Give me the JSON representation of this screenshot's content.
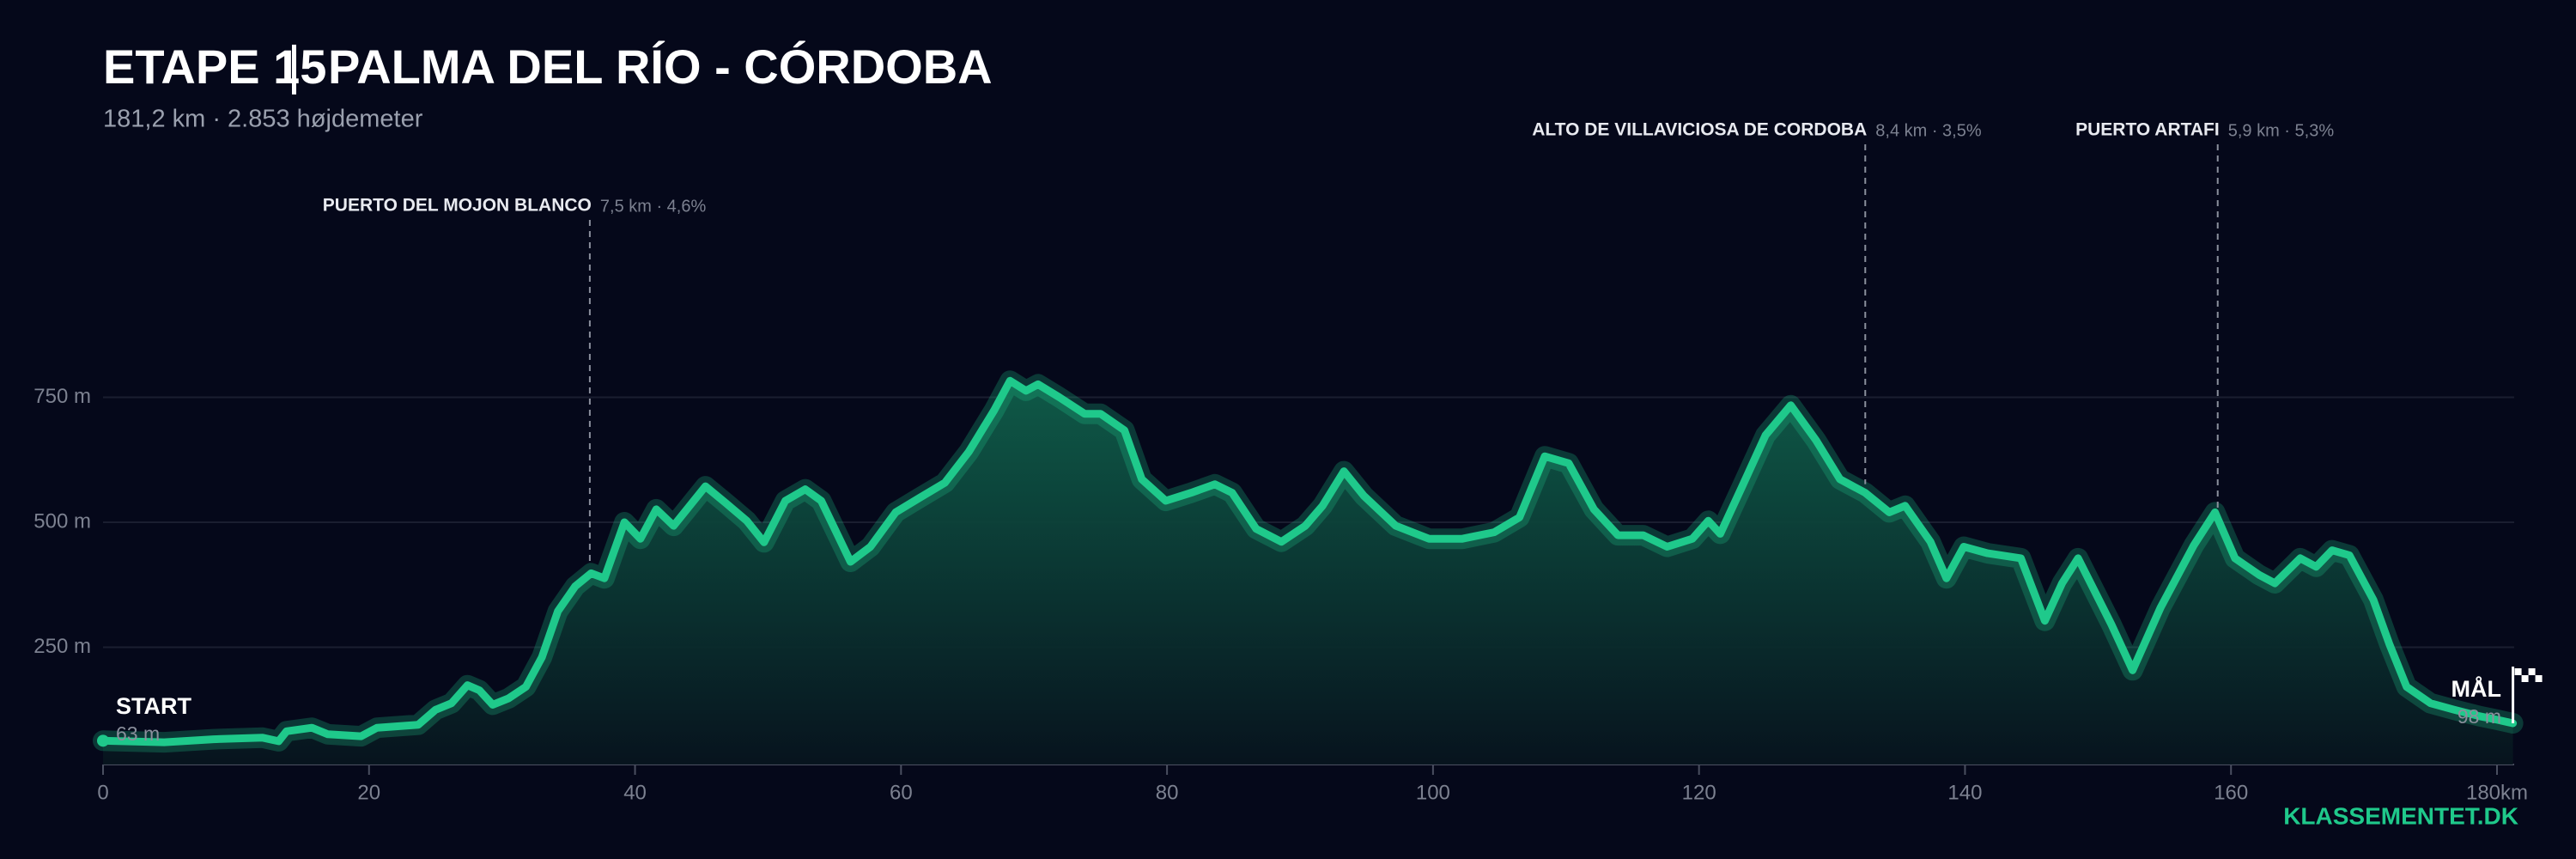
{
  "chart_data": {
    "type": "area",
    "title": "ETAPE 15",
    "title_route": "PALMA DEL RÍO - CÓRDOBA",
    "subtitle": "181,2 km  ·  2.853 højdemeter",
    "logo": "KLASSEMENTET.DK",
    "color": "#1fc98b",
    "x": [
      0,
      4.6,
      8.3,
      12,
      13.2,
      13.8,
      15.7,
      16.9,
      19.4,
      20.6,
      23.7,
      25,
      26.2,
      27.4,
      28.3,
      29.3,
      30.5,
      31.8,
      33,
      34.2,
      35.5,
      36.7,
      37.7,
      39.2,
      40.4,
      41.6,
      42.9,
      45.3,
      46.8,
      48.4,
      49.7,
      51.3,
      52.8,
      54,
      56.2,
      57.7,
      59.6,
      61.4,
      63.3,
      65.1,
      67,
      68.2,
      69.4,
      70.3,
      71.9,
      73.8,
      75,
      76.8,
      78.1,
      79.9,
      81.8,
      83.6,
      84.9,
      86.7,
      88.6,
      90.4,
      91.7,
      93.3,
      94.8,
      97.2,
      99.7,
      102.2,
      104.6,
      106.5,
      108.4,
      110.2,
      112.1,
      113.9,
      115.8,
      117.6,
      119.5,
      120.7,
      121.6,
      123.2,
      125,
      126.9,
      128.8,
      130.6,
      132.5,
      134.3,
      135.5,
      137.4,
      138.6,
      139.9,
      141.7,
      144.2,
      146,
      147.3,
      148.5,
      151,
      152.6,
      154.7,
      157.2,
      158.8,
      160.3,
      162.1,
      163.3,
      165.2,
      166.4,
      167.6,
      168.9,
      170.7,
      171.9,
      173.2,
      175,
      176.8,
      178.7,
      180,
      181.2
    ],
    "values": [
      63,
      60,
      66,
      69,
      62,
      82,
      89,
      76,
      72,
      89,
      95,
      125,
      138,
      174,
      164,
      135,
      148,
      171,
      230,
      322,
      372,
      398,
      388,
      500,
      467,
      526,
      493,
      572,
      539,
      503,
      460,
      543,
      566,
      543,
      421,
      451,
      520,
      549,
      579,
      641,
      724,
      783,
      763,
      776,
      750,
      717,
      717,
      684,
      586,
      543,
      559,
      576,
      559,
      487,
      461,
      493,
      533,
      602,
      553,
      493,
      467,
      467,
      480,
      510,
      632,
      618,
      526,
      474,
      474,
      451,
      467,
      503,
      477,
      569,
      674,
      734,
      664,
      586,
      559,
      520,
      533,
      461,
      388,
      451,
      438,
      428,
      303,
      378,
      428,
      296,
      204,
      329,
      454,
      520,
      428,
      395,
      378,
      428,
      411,
      444,
      434,
      345,
      257,
      171,
      138,
      125,
      112,
      105,
      98
    ],
    "xlim": [
      0,
      180
    ],
    "ylim": [
      0,
      1000
    ],
    "xticks": [
      0,
      20,
      40,
      60,
      80,
      100,
      120,
      140,
      160,
      {
        "value": 180,
        "label": "180km"
      }
    ],
    "yticks": [
      {
        "value": 250,
        "label": "250 m"
      },
      {
        "value": 500,
        "label": "500 m"
      },
      {
        "value": 750,
        "label": "750 m"
      }
    ],
    "grid": true,
    "start": {
      "label": "START",
      "elevation": "63 m"
    },
    "finish": {
      "label": "MÅL",
      "elevation": "98 m"
    },
    "climbs": [
      {
        "name": "PUERTO DEL MOJON BLANCO",
        "detail": "7,5 km · 4,6%",
        "x": 36.6,
        "row": 1
      },
      {
        "name": "ALTO DE VILLAVICIOSA DE CORDOBA",
        "detail": "8,4 km · 3,5%",
        "x": 132.5,
        "row": 0
      },
      {
        "name": "PUERTO ARTAFI",
        "detail": "5,9 km · 5,3%",
        "x": 159,
        "row": 0
      }
    ]
  }
}
